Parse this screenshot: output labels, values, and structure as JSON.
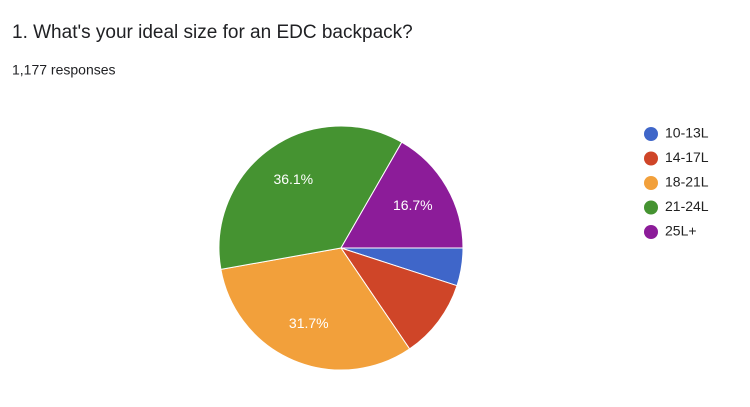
{
  "chart_data": {
    "type": "pie",
    "title": "1. What's your ideal size for an EDC backpack?",
    "subtitle": "1,177 responses",
    "categories": [
      "10-13L",
      "14-17L",
      "18-21L",
      "21-24L",
      "25L+"
    ],
    "values": [
      5,
      10.5,
      31.7,
      36.1,
      16.7
    ],
    "value_labels": [
      null,
      null,
      "31.7%",
      "36.1%",
      "16.7%"
    ],
    "colors": [
      "#3f66c9",
      "#cf4528",
      "#f2a03b",
      "#459331",
      "#8c1c99"
    ],
    "legend": "right"
  }
}
